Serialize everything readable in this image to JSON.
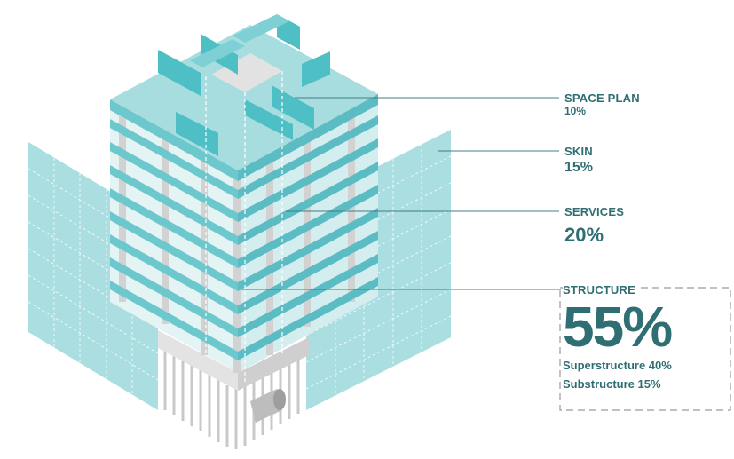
{
  "colors": {
    "teal_light": "#bfe6e8",
    "teal_mid": "#8fd3d7",
    "teal_dark": "#4fbfc6",
    "label": "#2f6f73",
    "concrete": "#d9d9d9",
    "leader": "#3f7f83"
  },
  "components": {
    "space_plan": {
      "label": "SPACE PLAN",
      "percent": "10%"
    },
    "skin": {
      "label": "SKIN",
      "percent": "15%"
    },
    "services": {
      "label": "SERVICES",
      "percent": "20%"
    },
    "structure": {
      "label": "STRUCTURE",
      "percent": "55%",
      "superstructure": "Superstructure 40%",
      "substructure": "Substructure 15%"
    }
  }
}
